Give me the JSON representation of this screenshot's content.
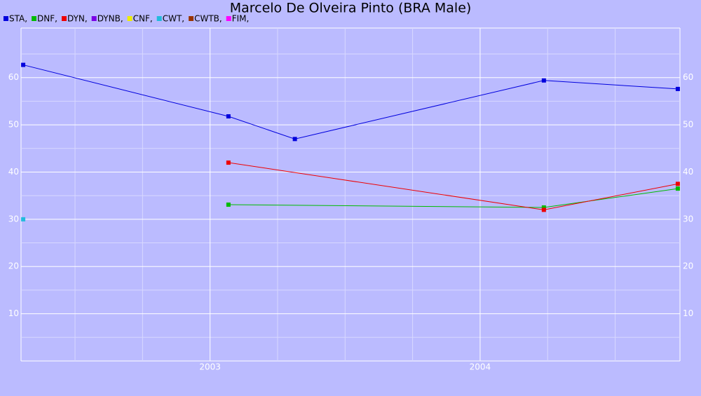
{
  "chart_data": {
    "type": "line",
    "title": "Marcelo De Olveira Pinto (BRA Male)",
    "xlim": [
      2002.3,
      2004.74
    ],
    "xticks": [
      2003,
      2004
    ],
    "xminor": [
      2002.5,
      2002.75,
      2003.25,
      2003.5,
      2003.75,
      2004.25,
      2004.5
    ],
    "ylim": [
      0,
      70.5
    ],
    "yticks": [
      10,
      20,
      30,
      40,
      50,
      60
    ],
    "yminor": [
      5,
      15,
      25,
      35,
      45,
      55,
      65
    ],
    "grid": true,
    "series": [
      {
        "name": "STA,",
        "color": "#0000dd",
        "x": [
          2002.308,
          2003.068,
          2003.314,
          2004.236,
          2004.732
        ],
        "values": [
          62.7,
          51.8,
          47.0,
          59.4,
          57.6
        ]
      },
      {
        "name": "DNF,",
        "color": "#00bb00",
        "x": [
          2003.068,
          2004.236,
          2004.732
        ],
        "values": [
          33.1,
          32.5,
          36.5
        ]
      },
      {
        "name": "DYN,",
        "color": "#ee0000",
        "x": [
          2003.068,
          2004.236,
          2004.732
        ],
        "values": [
          42.0,
          32.0,
          37.5
        ]
      },
      {
        "name": "DYNB,",
        "color": "#7a00e6",
        "x": [],
        "values": []
      },
      {
        "name": "CNF,",
        "color": "#eeee00",
        "x": [],
        "values": []
      },
      {
        "name": "CWT,",
        "color": "#22bbdd",
        "x": [
          2002.308
        ],
        "values": [
          30.0
        ]
      },
      {
        "name": "CWTB,",
        "color": "#993300",
        "x": [],
        "values": []
      },
      {
        "name": "FIM,",
        "color": "#ff00ff",
        "x": [],
        "values": []
      }
    ]
  }
}
